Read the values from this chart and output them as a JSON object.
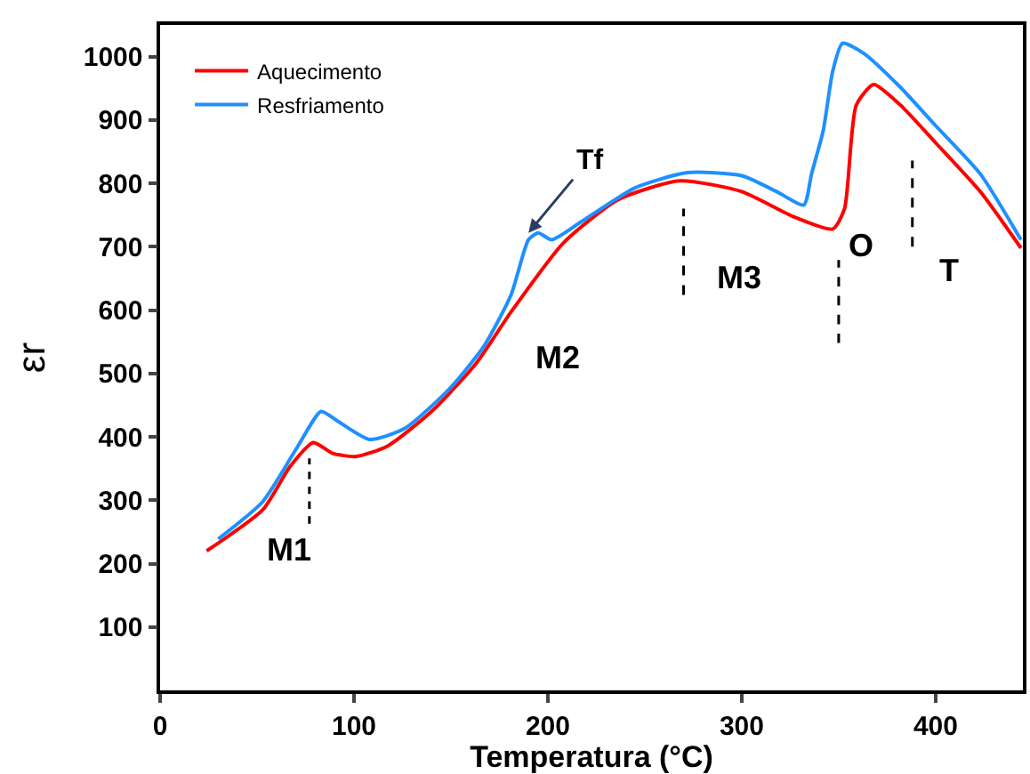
{
  "chart_data": {
    "type": "line",
    "xlabel": "Temperatura (°C)",
    "ylabel": "εr",
    "xlim": [
      0,
      445
    ],
    "ylim": [
      0,
      1050
    ],
    "xticks": [
      0,
      100,
      200,
      300,
      400
    ],
    "yticks": [
      100,
      200,
      300,
      400,
      500,
      600,
      700,
      800,
      900,
      1000
    ],
    "legend": "top left",
    "marker": "none",
    "line_style": "solid",
    "series": [
      {
        "name": "Aquecimento",
        "color": "#ff0000",
        "x": [
          24,
          53,
          67,
          79,
          89,
          101,
          117,
          140,
          163,
          181,
          208,
          236,
          268,
          300,
          327,
          347,
          353,
          359,
          368,
          382,
          400,
          423,
          444
        ],
        "values": [
          220,
          285,
          353,
          391,
          374,
          369,
          385,
          440,
          516,
          597,
          706,
          774,
          804,
          787,
          747,
          728,
          760,
          923,
          956,
          923,
          864,
          787,
          698
        ]
      },
      {
        "name": "Resfriamento",
        "color": "#1e90ff",
        "x": [
          30,
          53,
          71,
          83,
          91,
          108,
          126,
          149,
          167,
          181,
          190,
          195,
          202,
          217,
          245,
          272,
          300,
          318,
          332,
          336,
          342,
          347,
          352,
          363,
          382,
          400,
          423,
          444
        ],
        "values": [
          239,
          298,
          385,
          440,
          426,
          396,
          413,
          475,
          543,
          624,
          711,
          722,
          711,
          739,
          793,
          817,
          812,
          787,
          766,
          815,
          883,
          978,
          1021,
          1005,
          951,
          891,
          815,
          711
        ]
      },
      {
        "color": "#000000",
        "line_style": "dashed",
        "x": [
          77,
          77
        ],
        "values": [
          263,
          366
        ]
      },
      {
        "color": "#000000",
        "line_style": "dashed",
        "x": [
          270,
          270
        ],
        "values": [
          624,
          760
        ]
      },
      {
        "color": "#000000",
        "line_style": "dashed",
        "x": [
          350,
          350
        ],
        "values": [
          548,
          679
        ]
      },
      {
        "color": "#000000",
        "line_style": "dashed",
        "x": [
          388,
          388
        ],
        "values": [
          700,
          836
        ]
      }
    ],
    "annotations": [
      "M1",
      "M2",
      "M3",
      "O",
      "T",
      {
        "text": "Tf",
        "x": 190,
        "y": 722
      }
    ]
  }
}
